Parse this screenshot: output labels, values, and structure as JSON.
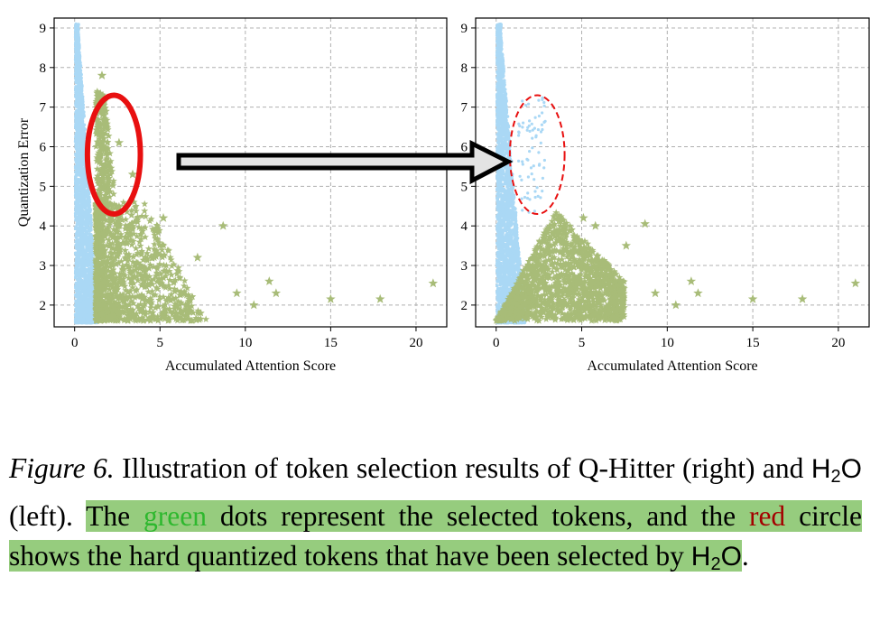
{
  "colors": {
    "unselected": "#aad8f5",
    "selected": "#a8bc78",
    "circle_h2o": "#e81010",
    "circle_qhitter": "#e81010",
    "highlight": "#96cc7e",
    "green_word": "#2eb82e",
    "red_word": "#a40000"
  },
  "chart_data": [
    {
      "type": "scatter",
      "panel": "left",
      "xlabel": "Accumulated Attention Score",
      "ylabel": "Quantization Error",
      "xlim": [
        -1.2,
        21.8
      ],
      "ylim": [
        1.45,
        9.25
      ],
      "xticks": [
        0,
        5,
        10,
        15,
        20
      ],
      "yticks": [
        2,
        3,
        4,
        5,
        6,
        7,
        8,
        9
      ],
      "grid": true,
      "series": [
        {
          "marker": "dot",
          "color": "#aad8f5",
          "region": {
            "x": [
              0.05,
              1.3
            ],
            "y": [
              1.55,
              9.1
            ]
          }
        },
        {
          "marker": "star",
          "color": "#a8bc78",
          "region": {
            "x": [
              1.25,
              8.5
            ],
            "y": [
              1.6,
              7.4
            ]
          },
          "outliers": [
            [
              1.6,
              7.8
            ],
            [
              2.6,
              6.1
            ],
            [
              3.4,
              5.3
            ],
            [
              5.2,
              4.2
            ],
            [
              8.7,
              4.0
            ],
            [
              7.2,
              3.2
            ],
            [
              9.5,
              2.3
            ],
            [
              10.5,
              2.0
            ],
            [
              11.4,
              2.6
            ],
            [
              11.8,
              2.3
            ],
            [
              15.0,
              2.15
            ],
            [
              17.9,
              2.15
            ],
            [
              21.0,
              2.55
            ]
          ]
        }
      ],
      "annotations": [
        {
          "shape": "ellipse",
          "style": "solid",
          "cx": 2.3,
          "cy": 5.8,
          "rx": 1.55,
          "ry": 1.5
        }
      ]
    },
    {
      "type": "scatter",
      "panel": "right",
      "xlabel": "Accumulated Attention Score",
      "ylabel": "",
      "xlim": [
        -1.2,
        21.8
      ],
      "ylim": [
        1.45,
        9.25
      ],
      "xticks": [
        0,
        5,
        10,
        15,
        20
      ],
      "yticks": [
        2,
        3,
        4,
        5,
        6,
        7,
        8,
        9
      ],
      "grid": true,
      "series": [
        {
          "marker": "dot",
          "color": "#aad8f5",
          "region": {
            "x": [
              0.05,
              1.6
            ],
            "y": [
              1.55,
              9.1
            ]
          }
        },
        {
          "marker": "star",
          "color": "#a8bc78",
          "region": {
            "x": [
              0.0,
              8.5
            ],
            "y": [
              1.55,
              4.4
            ]
          },
          "outliers": [
            [
              5.1,
              4.2
            ],
            [
              5.8,
              4.0
            ],
            [
              8.7,
              4.05
            ],
            [
              7.6,
              3.5
            ],
            [
              9.3,
              2.3
            ],
            [
              10.5,
              2.0
            ],
            [
              11.4,
              2.6
            ],
            [
              11.8,
              2.3
            ],
            [
              15.0,
              2.15
            ],
            [
              17.9,
              2.15
            ],
            [
              21.0,
              2.55
            ]
          ]
        }
      ],
      "annotations": [
        {
          "shape": "ellipse",
          "style": "dashed",
          "cx": 2.4,
          "cy": 5.8,
          "rx": 1.6,
          "ry": 1.5
        }
      ]
    }
  ],
  "caption": {
    "fig_label": "Figure 6.",
    "part1": " Illustration of token selection results of Q-Hitter (right) and ",
    "h2o_letter": "H",
    "h2o_sub": "2",
    "h2o_o": "O",
    "part2": " (left). ",
    "hl_the": "The",
    "space": " ",
    "green_word": "green",
    "hl_rest1": " dots represent the selected tokens, and the ",
    "red_word": "red",
    "hl_rest2": " circle shows the hard quantized tokens that have been selected by ",
    "end": "."
  }
}
